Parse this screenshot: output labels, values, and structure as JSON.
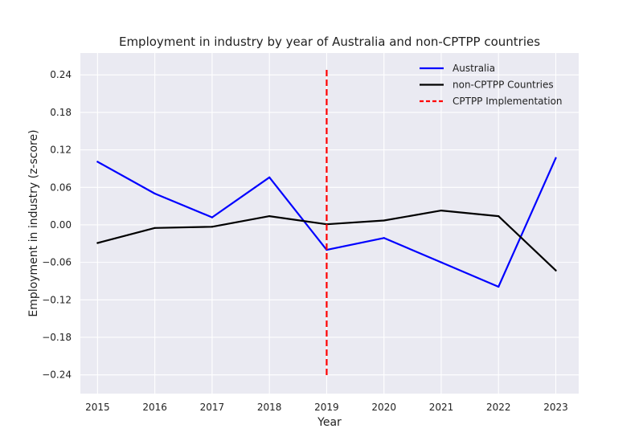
{
  "chart_data": {
    "type": "line",
    "title": "Employment in industry by year of Australia and non-CPTPP countries",
    "xlabel": "Year",
    "ylabel": "Employment in industry (z-score)",
    "x": [
      2015,
      2016,
      2017,
      2018,
      2019,
      2020,
      2021,
      2022,
      2023
    ],
    "xticks": [
      "2015",
      "2016",
      "2017",
      "2018",
      "2019",
      "2020",
      "2021",
      "2022",
      "2023"
    ],
    "xlim": [
      2014.7,
      2023.4
    ],
    "ylim": [
      -0.27,
      0.275
    ],
    "yticks": [
      0.24,
      0.18,
      0.12,
      0.06,
      0.0,
      -0.06,
      -0.12,
      -0.18,
      -0.24
    ],
    "ytick_labels": [
      "0.24",
      "0.18",
      "0.12",
      "0.06",
      "0.00",
      "−0.06",
      "−0.12",
      "−0.18",
      "−0.24"
    ],
    "grid": true,
    "legend_position": "top-right",
    "series": [
      {
        "name": "Australia",
        "color": "#0000ff",
        "style": "solid",
        "values": [
          0.101,
          0.05,
          0.012,
          0.076,
          -0.04,
          -0.021,
          -0.06,
          -0.099,
          0.107
        ]
      },
      {
        "name": "non-CPTPP Countries",
        "color": "#000000",
        "style": "solid",
        "values": [
          -0.029,
          -0.005,
          -0.003,
          0.014,
          0.001,
          0.007,
          0.023,
          0.014,
          -0.073
        ]
      }
    ],
    "vline": {
      "name": "CPTPP Implementation",
      "x": 2019,
      "color": "#ff0000",
      "style": "dashed",
      "y_range": [
        -0.245,
        0.248
      ]
    }
  }
}
